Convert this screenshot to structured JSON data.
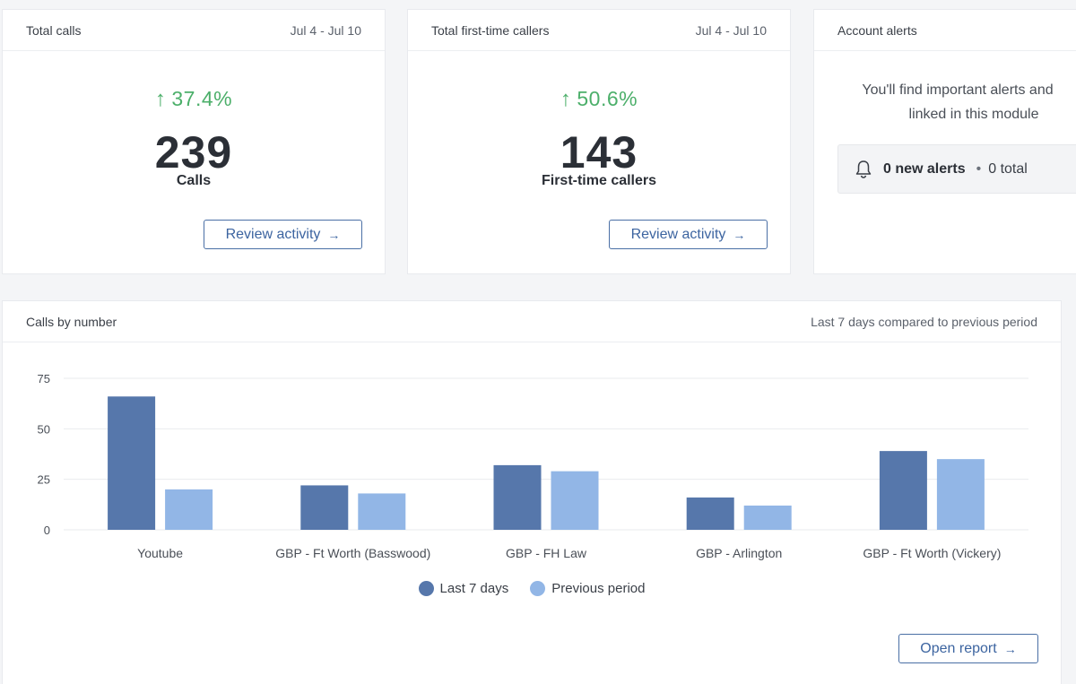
{
  "cards": {
    "total_calls": {
      "title": "Total calls",
      "date_range": "Jul 4 - Jul 10",
      "trend": "37.4%",
      "value": "239",
      "label": "Calls",
      "button_label": "Review activity"
    },
    "first_time": {
      "title": "Total first-time callers",
      "date_range": "Jul 4 - Jul 10",
      "trend": "50.6%",
      "value": "143",
      "label": "First-time callers",
      "button_label": "Review activity"
    },
    "alerts": {
      "title": "Account alerts",
      "message_line1": "You'll find important alerts and",
      "message_line2": "linked in this module",
      "new_alerts": "0 new alerts",
      "total": "0 total"
    }
  },
  "chart_card": {
    "title": "Calls by number",
    "subtitle": "Last 7 days compared to previous period",
    "button_label": "Open report"
  },
  "icons": {
    "trend": "arrow-up-icon",
    "bell": "bell-icon",
    "button_arrow": "arrow-right-icon"
  },
  "colors": {
    "trend_positive": "#4caf6a",
    "button_accent": "#3c64a0",
    "series_current": "#5677ab",
    "series_previous": "#92b6e6"
  },
  "chart_data": {
    "type": "bar",
    "title": "Calls by number",
    "categories": [
      "Youtube",
      "GBP - Ft Worth (Basswood)",
      "GBP - FH Law",
      "GBP - Arlington",
      "GBP - Ft Worth (Vickery)"
    ],
    "series": [
      {
        "name": "Last 7 days",
        "color": "#5677ab",
        "values": [
          66,
          22,
          32,
          16,
          39
        ]
      },
      {
        "name": "Previous period",
        "color": "#92b6e6",
        "values": [
          20,
          18,
          29,
          12,
          35
        ]
      }
    ],
    "yticks": [
      "0",
      "25",
      "50",
      "75"
    ],
    "ylim": [
      0,
      75
    ],
    "grid": true,
    "legend_position": "bottom-center"
  }
}
